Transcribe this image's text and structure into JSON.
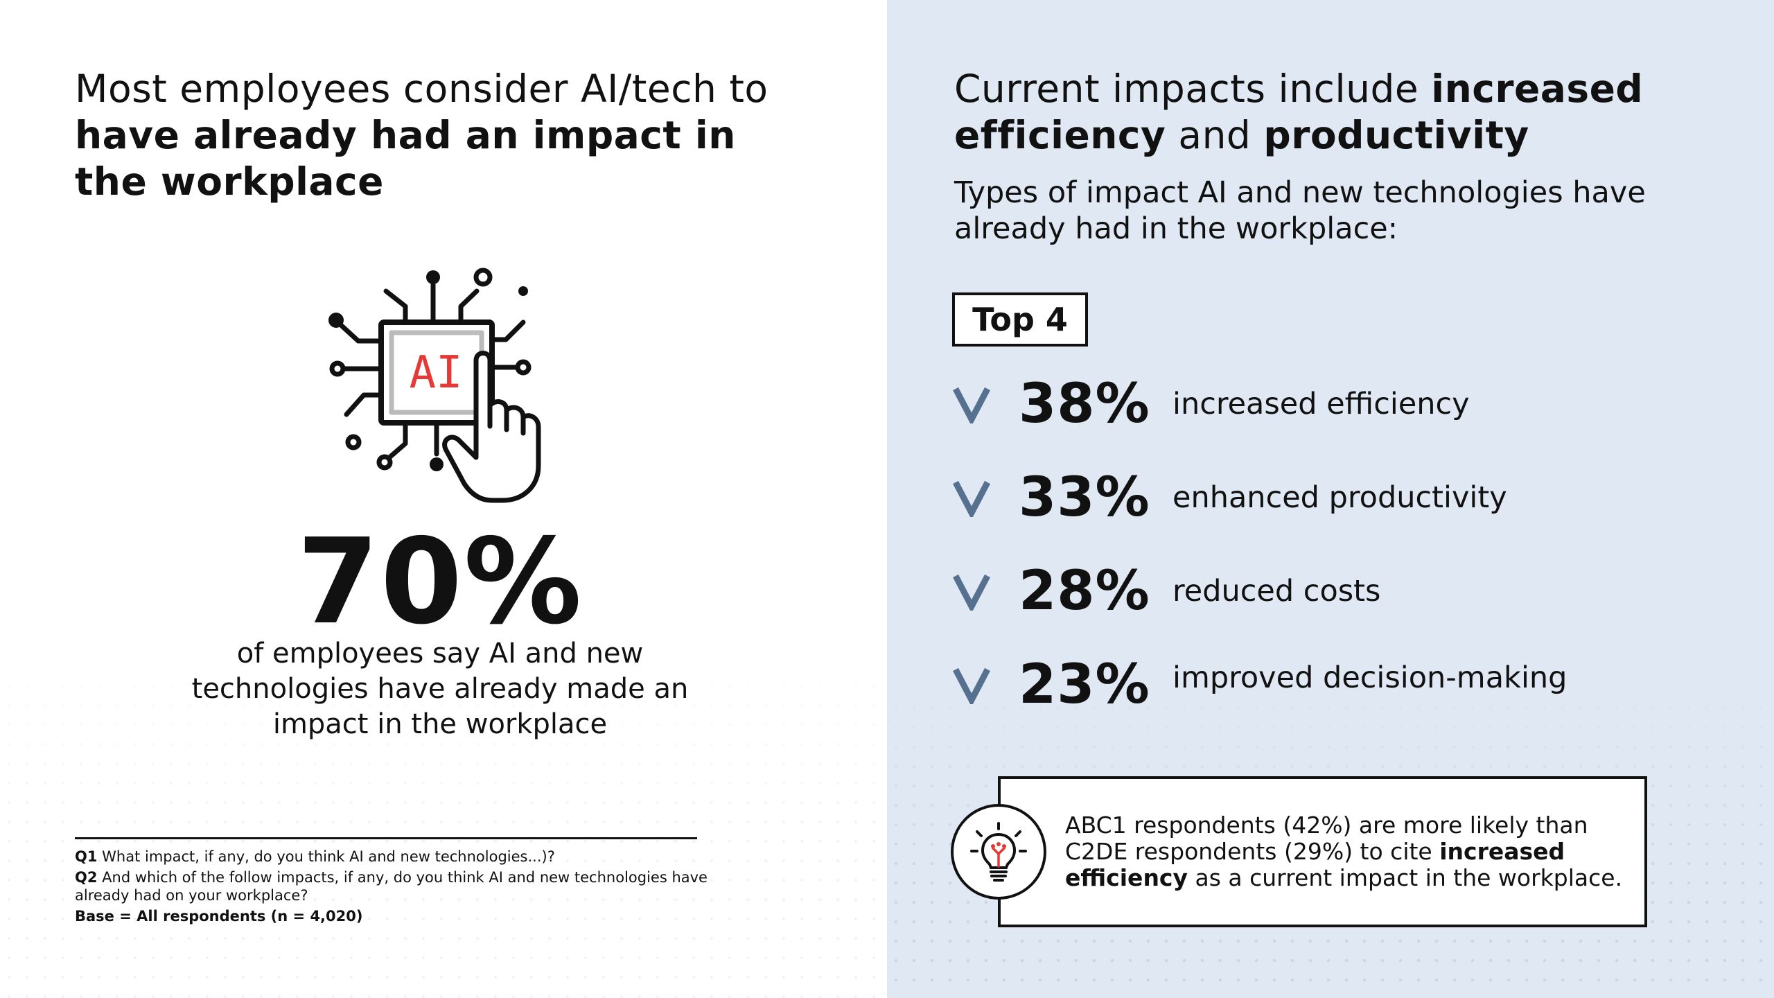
{
  "left": {
    "headline_part1": "Most employees consider AI/tech to ",
    "headline_bold": "have already had an impact in the workplace",
    "icon_chip_text": "AI",
    "big_stat": "70%",
    "stat_caption": "of employees say AI and new technologies have already made an impact in the workplace",
    "footnotes": {
      "q1_label": "Q1",
      "q1_text": " What impact, if any, do you think AI and new technologies...)?",
      "q2_label": "Q2",
      "q2_text": " And which of the follow impacts, if any, do you think AI and new technologies have already had on your workplace?",
      "base": "Base = All respondents (n = 4,020)"
    }
  },
  "right": {
    "headline_part1": "Current impacts include ",
    "headline_bold1": "increased efficiency",
    "headline_part2": " and ",
    "headline_bold2": "productivity",
    "subhead": "Types of impact AI and new technologies have already had in the workplace:",
    "top_badge": "Top 4",
    "impacts": [
      {
        "percent": "38%",
        "label": "increased efficiency"
      },
      {
        "percent": "33%",
        "label": "enhanced productivity"
      },
      {
        "percent": "28%",
        "label": "reduced costs"
      },
      {
        "percent": "23%",
        "label": "improved decision-making"
      }
    ],
    "callout": {
      "text_part1": "ABC1 respondents (42%) are more likely than C2DE respondents (29%) to cite ",
      "text_bold": "increased efficiency",
      "text_part2": " as a current impact in the workplace."
    }
  },
  "colors": {
    "right_background": "#dfe8f3",
    "check_color": "#56718f",
    "accent_red": "#e53935",
    "text": "#111111"
  },
  "icons": [
    "ai-chip-hand-icon",
    "check-icon",
    "lightbulb-icon"
  ]
}
